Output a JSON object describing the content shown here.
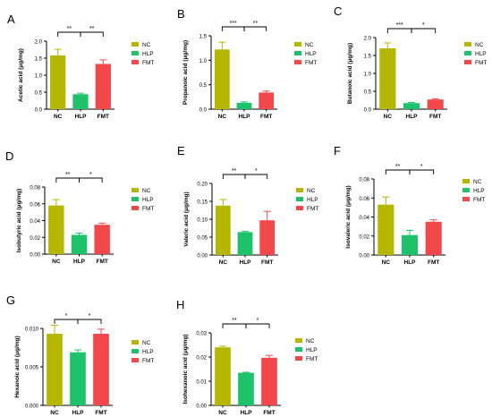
{
  "figure": {
    "groups": [
      "NC",
      "HLP",
      "FMT"
    ]
  },
  "colors": {
    "NC": "#b5b600",
    "HLP": "#1ec26b",
    "FMT": "#f2484b",
    "axis": "#000000"
  },
  "chart_data": [
    {
      "panel": "A",
      "type": "bar",
      "categories": [
        "NC",
        "HLP",
        "FMT"
      ],
      "values": [
        1.58,
        0.44,
        1.33
      ],
      "errors": [
        0.18,
        0.03,
        0.12
      ],
      "ylabel": "Acetic acid (μg/mg)",
      "ylim": [
        0,
        2.0
      ],
      "yticks": [
        "0.0",
        "0.5",
        "1.0",
        "1.5",
        "2.0"
      ],
      "significance": [
        "**",
        "**"
      ],
      "legend": [
        "NC",
        "HLP",
        "FMT"
      ],
      "legend_position": "right"
    },
    {
      "panel": "B",
      "type": "bar",
      "categories": [
        "NC",
        "HLP",
        "FMT"
      ],
      "values": [
        1.22,
        0.13,
        0.34
      ],
      "errors": [
        0.15,
        0.02,
        0.03
      ],
      "ylabel": "Propanoic acid (μg/mg)",
      "ylim": [
        0,
        1.5
      ],
      "yticks": [
        "0.0",
        "0.5",
        "1.0",
        "1.5"
      ],
      "significance": [
        "***",
        "**"
      ],
      "legend": [
        "NC",
        "HLP",
        "FMT"
      ],
      "legend_position": "right"
    },
    {
      "panel": "C",
      "type": "bar",
      "categories": [
        "NC",
        "HLP",
        "FMT"
      ],
      "values": [
        1.7,
        0.17,
        0.27
      ],
      "errors": [
        0.15,
        0.02,
        0.02
      ],
      "ylabel": "Butanoic acid (μg/mg)",
      "ylim": [
        0,
        2.0
      ],
      "yticks": [
        "0.0",
        "0.5",
        "1.0",
        "1.5",
        "2.0"
      ],
      "significance": [
        "***",
        "*"
      ],
      "legend": [
        "NC",
        "HLP",
        "FMT"
      ],
      "legend_position": "right"
    },
    {
      "panel": "D",
      "type": "bar",
      "categories": [
        "NC",
        "HLP",
        "FMT"
      ],
      "values": [
        0.058,
        0.023,
        0.035
      ],
      "errors": [
        0.007,
        0.002,
        0.002
      ],
      "ylabel": "Isobutyric acid (μg/mg)",
      "ylim": [
        0,
        0.08
      ],
      "yticks": [
        "0.00",
        "0.02",
        "0.04",
        "0.06",
        "0.08"
      ],
      "significance": [
        "**",
        "*"
      ],
      "legend": [
        "NC",
        "HLP",
        "FMT"
      ],
      "legend_position": "right"
    },
    {
      "panel": "E",
      "type": "bar",
      "categories": [
        "NC",
        "HLP",
        "FMT"
      ],
      "values": [
        0.138,
        0.064,
        0.097
      ],
      "errors": [
        0.017,
        0.002,
        0.025
      ],
      "ylabel": "Valeric acid (μg/mg)",
      "ylim": [
        0,
        0.2
      ],
      "yticks": [
        "0.00",
        "0.05",
        "0.10",
        "0.15",
        "0.20"
      ],
      "significance": [
        "**",
        "*"
      ],
      "legend": [
        "NC",
        "HLP",
        "FMT"
      ],
      "legend_position": "right"
    },
    {
      "panel": "F",
      "type": "bar",
      "categories": [
        "NC",
        "HLP",
        "FMT"
      ],
      "values": [
        0.053,
        0.021,
        0.035
      ],
      "errors": [
        0.008,
        0.005,
        0.002
      ],
      "ylabel": "Isovaleric acid (μg/mg)",
      "ylim": [
        0,
        0.08
      ],
      "yticks": [
        "0.00",
        "0.02",
        "0.04",
        "0.06",
        "0.08"
      ],
      "significance": [
        "**",
        "*"
      ],
      "legend": [
        "NC",
        "HLP",
        "FMT"
      ],
      "legend_position": "right"
    },
    {
      "panel": "G",
      "type": "bar",
      "categories": [
        "NC",
        "HLP",
        "FMT"
      ],
      "values": [
        0.0093,
        0.0069,
        0.0093
      ],
      "errors": [
        0.0011,
        0.0003,
        0.0006
      ],
      "ylabel": "Hexanoic acid (μg/mg)",
      "ylim": [
        0,
        0.01
      ],
      "yticks": [
        "0.000",
        "0.005",
        "0.010"
      ],
      "significance": [
        "*",
        "*"
      ],
      "legend": [
        "NC",
        "HLP",
        "FMT"
      ],
      "legend_position": "right"
    },
    {
      "panel": "H",
      "type": "bar",
      "categories": [
        "NC",
        "HLP",
        "FMT"
      ],
      "values": [
        0.024,
        0.0135,
        0.0197
      ],
      "errors": [
        0.0005,
        0.0002,
        0.001
      ],
      "ylabel": "Isohexanoic acid (μg/mg)",
      "ylim": [
        0,
        0.03
      ],
      "yticks": [
        "0.00",
        "0.01",
        "0.02",
        "0.03"
      ],
      "significance": [
        "**",
        "*"
      ],
      "legend": [
        "NC",
        "HLP",
        "FMT"
      ],
      "legend_position": "right"
    }
  ]
}
